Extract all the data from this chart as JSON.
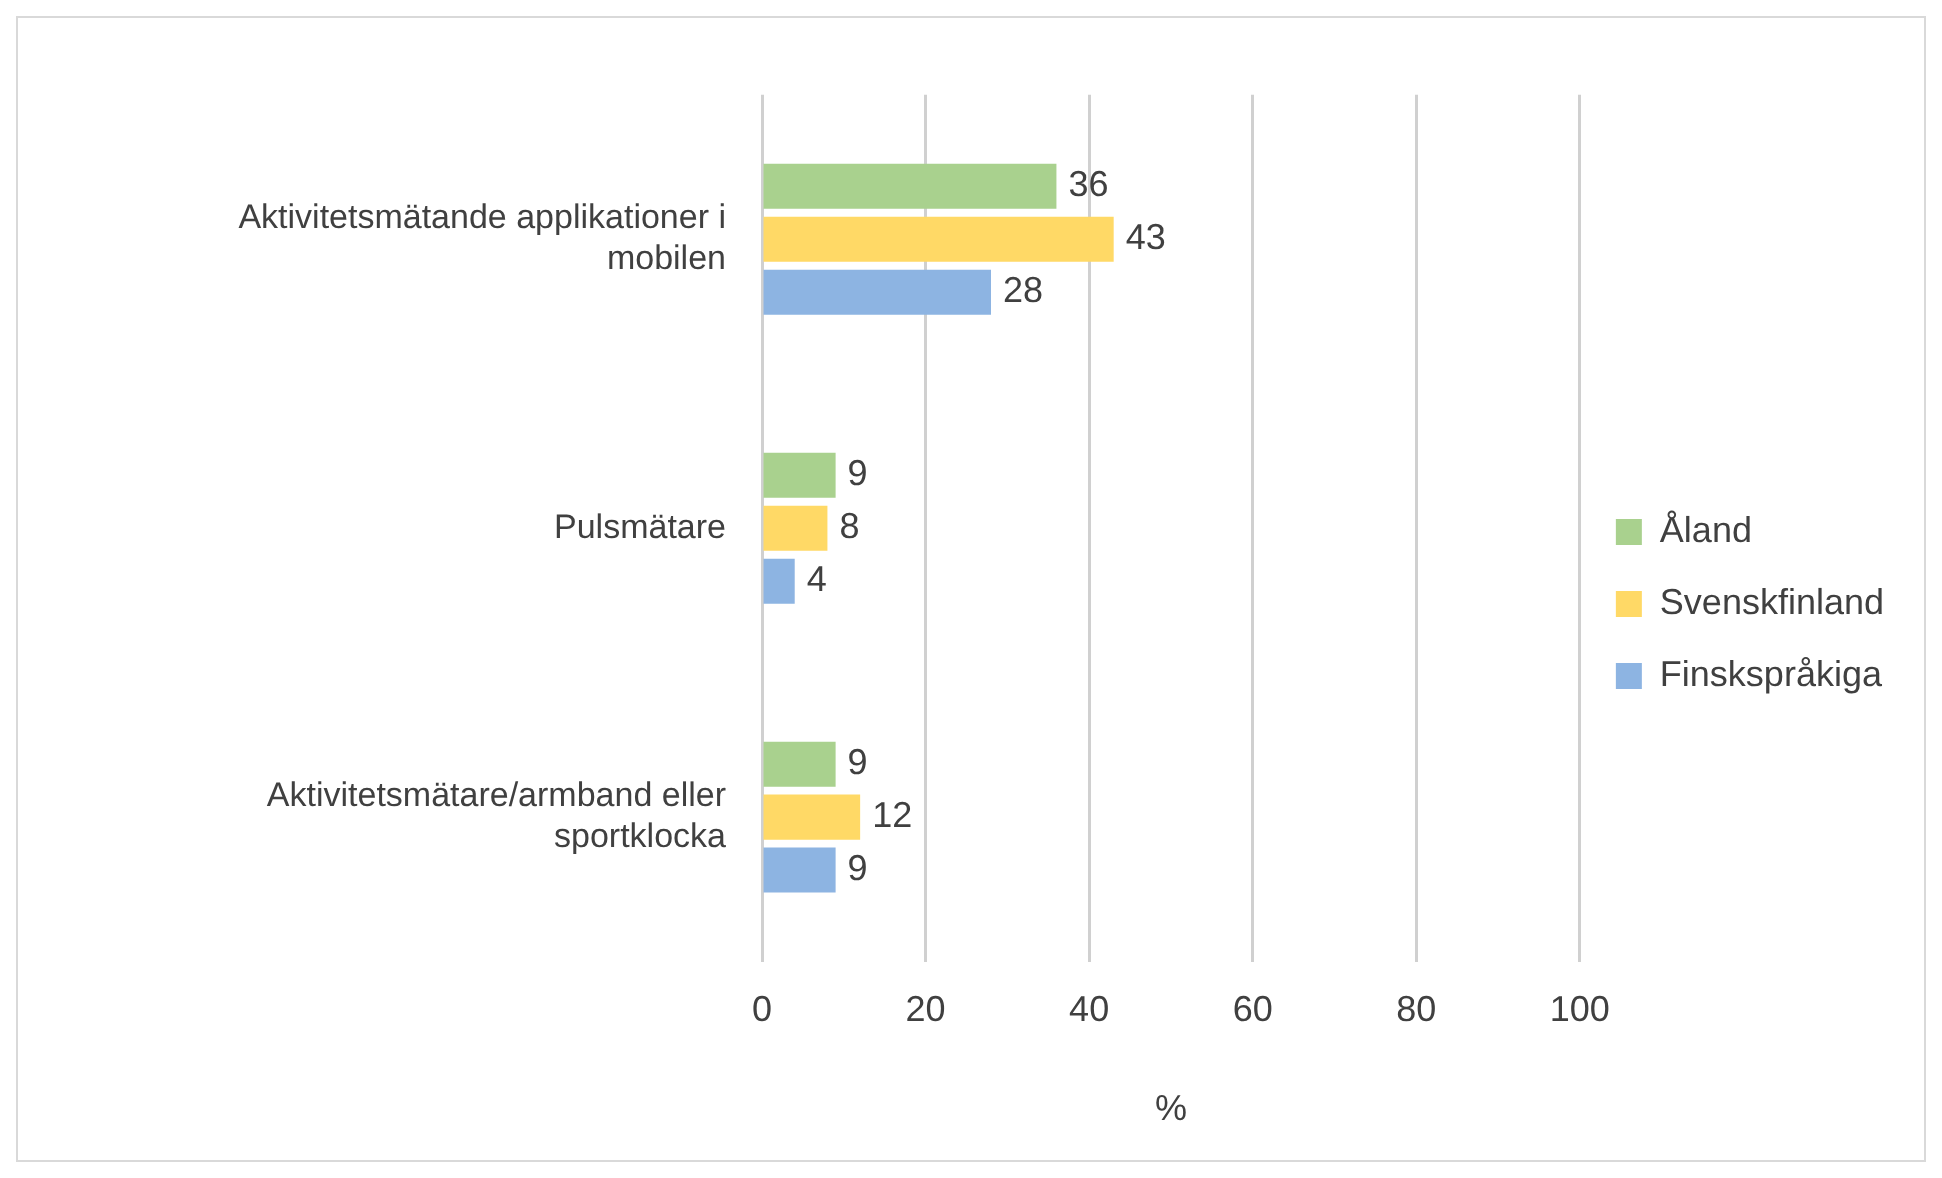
{
  "chart_data": {
    "type": "bar",
    "orientation": "horizontal",
    "categories": [
      "Aktivitetsmätande applikationer i mobilen",
      "Pulsmätare",
      "Aktivitetsmätare/armband eller sportklocka"
    ],
    "series": [
      {
        "name": "Åland",
        "color": "#a9d18e",
        "values": [
          36,
          9,
          9
        ]
      },
      {
        "name": "Svenskfinland",
        "color": "#ffd966",
        "values": [
          43,
          8,
          12
        ]
      },
      {
        "name": "Finskspråkiga",
        "color": "#8db4e2",
        "values": [
          28,
          4,
          9
        ]
      }
    ],
    "xlabel": "%",
    "xlim": [
      0,
      100
    ],
    "xticks": [
      0,
      20,
      40,
      60,
      80,
      100
    ],
    "grid": "x",
    "legend": "right",
    "data_labels": true
  }
}
